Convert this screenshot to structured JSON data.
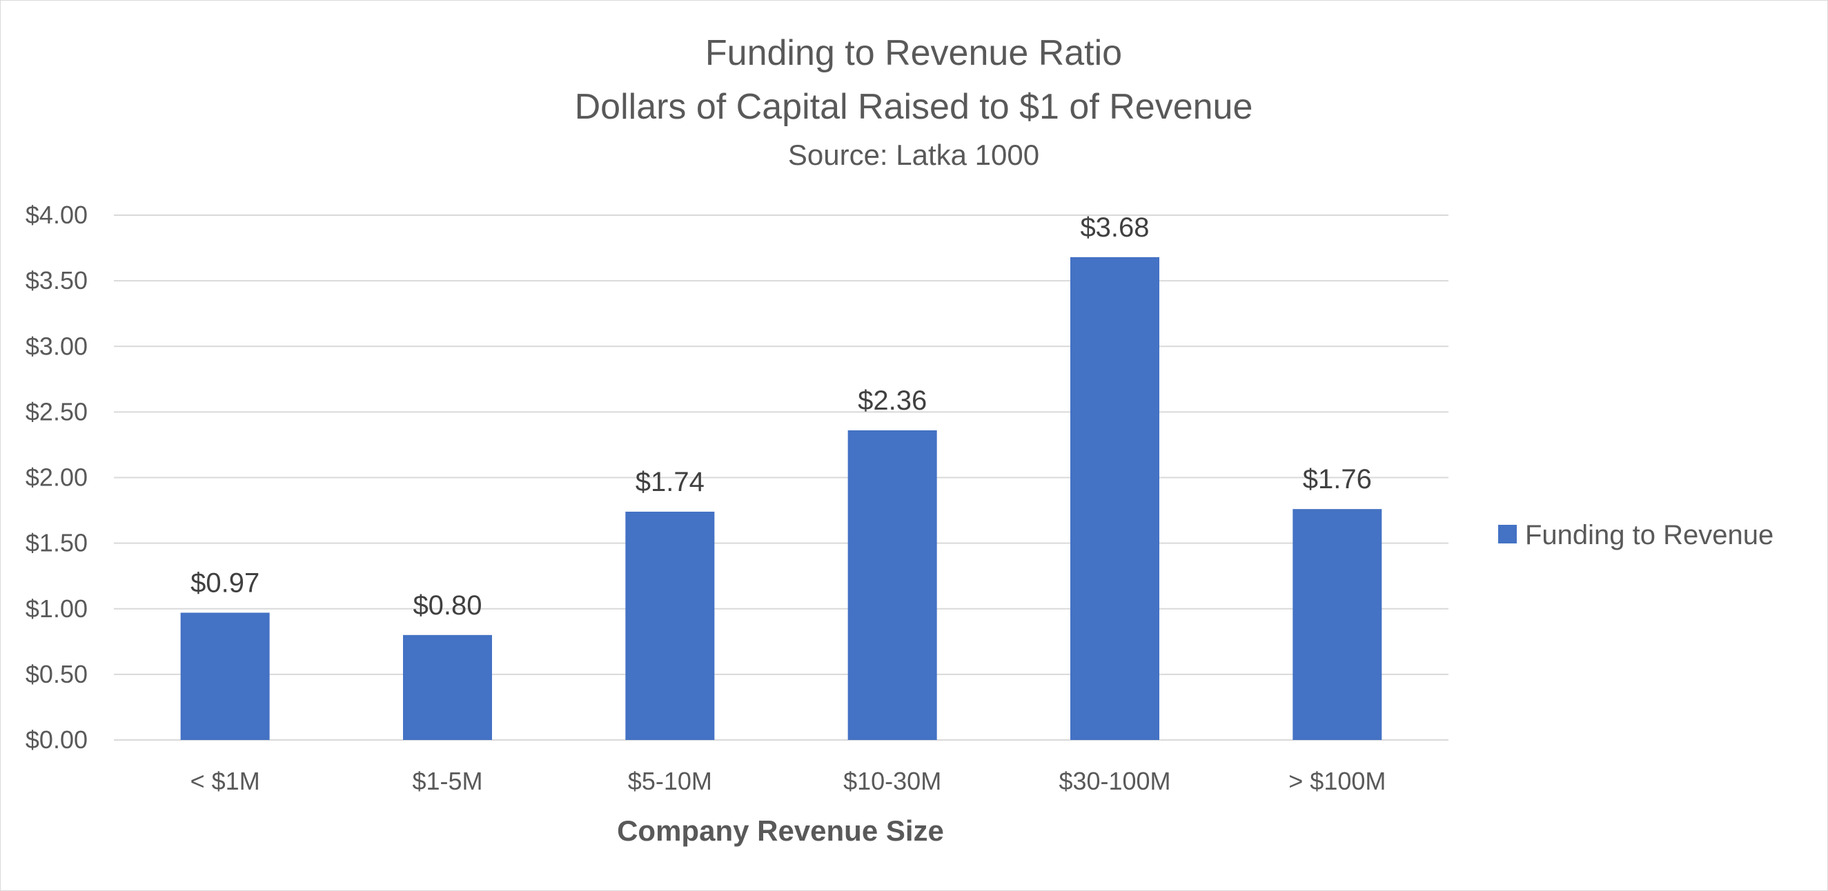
{
  "chart_data": {
    "type": "bar",
    "title": "Funding to Revenue Ratio",
    "subtitle": "Dollars of Capital Raised to $1 of Revenue",
    "source": "Source:  Latka 1000",
    "xlabel": "Company Revenue Size",
    "ylabel": "",
    "categories": [
      "< $1M",
      "$1-5M",
      "$5-10M",
      "$10-30M",
      "$30-100M",
      "> $100M"
    ],
    "series": [
      {
        "name": "Funding to Revenue",
        "values": [
          0.97,
          0.8,
          1.74,
          2.36,
          3.68,
          1.76
        ],
        "data_labels": [
          "$0.97",
          "$0.80",
          "$1.74",
          "$2.36",
          "$3.68",
          "$1.76"
        ],
        "color": "#4472c4"
      }
    ],
    "ylim": [
      0,
      4
    ],
    "yticks": [
      0,
      0.5,
      1,
      1.5,
      2,
      2.5,
      3,
      3.5,
      4
    ],
    "ytick_labels": [
      "$0.00",
      "$0.50",
      "$1.00",
      "$1.50",
      "$2.00",
      "$2.50",
      "$3.00",
      "$3.50",
      "$4.00"
    ],
    "grid": true,
    "legend_position": "right",
    "colors": {
      "bar": "#4472c4",
      "grid": "#d9d9d9",
      "text": "#595959",
      "label": "#404040"
    }
  }
}
